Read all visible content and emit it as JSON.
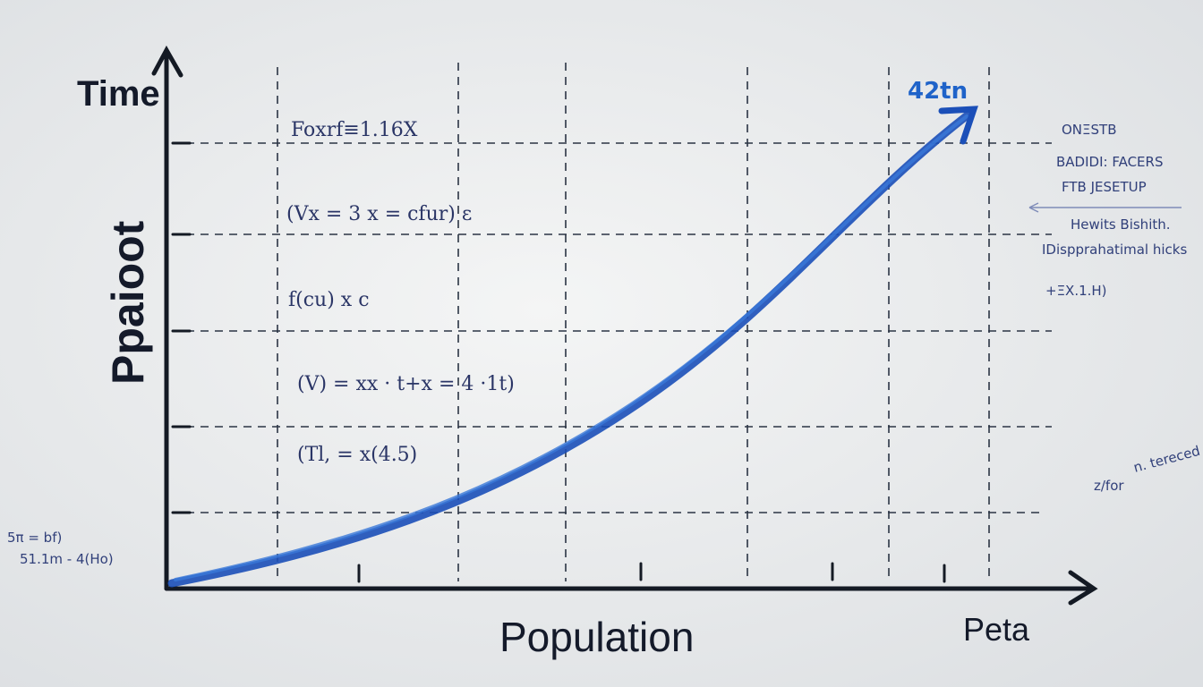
{
  "axes": {
    "y_label": "Time",
    "y_title": "Ppaioot",
    "x_title": "Population",
    "x_end_label": "Peta",
    "curve_label": "42tn"
  },
  "equations": [
    "Foxrf≡1.16X",
    "(Vx = 3 x = cfur) ε",
    "f(cu) x c",
    "(V) = xx · t+x = 4 ·1t)",
    "(Tl, = x(4.5)"
  ],
  "left_notes": [
    "5π = bf)",
    "51.1m - 4(Ho)"
  ],
  "right_notes": [
    "ONΞSTB",
    "BADIDI: FACERS",
    "FTB JESETUP",
    "Hewits Bishith.",
    "IDispprahatimal hicks",
    "+ΞX.1.H)",
    "z/for",
    "n. tereced"
  ]
}
